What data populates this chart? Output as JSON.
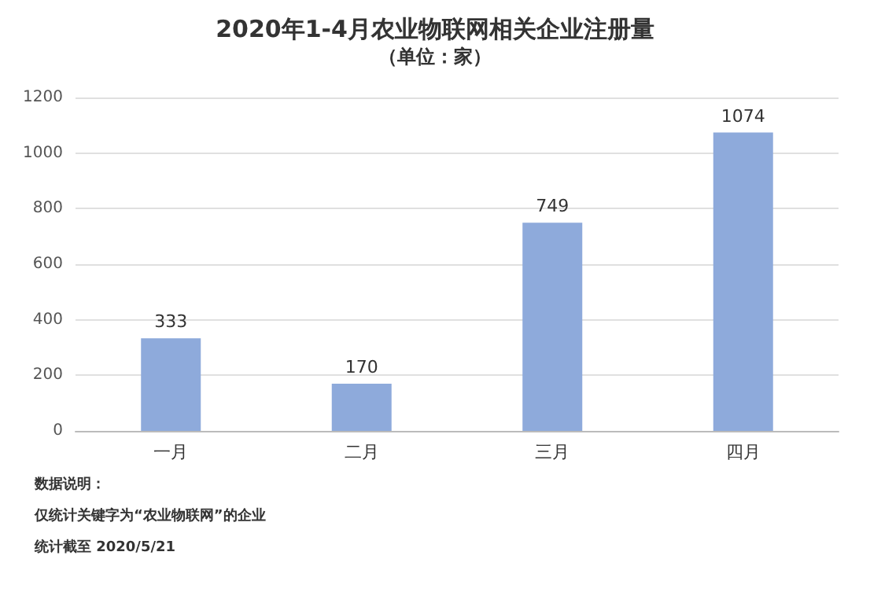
{
  "chart_data": {
    "type": "bar",
    "title": "2020年1-4月农业物联网相关企业注册量",
    "subtitle": "（单位：家）",
    "categories": [
      "一月",
      "二月",
      "三月",
      "四月"
    ],
    "values": [
      333,
      170,
      749,
      1074
    ],
    "color": "#8eaadb",
    "ylim": [
      0,
      1200
    ],
    "yticks": [
      0,
      200,
      400,
      600,
      800,
      1000,
      1200
    ],
    "grid": "y",
    "data_labels": true,
    "annotations": [
      "数据说明：",
      "仅统计关键字为“农业物联网”的企业",
      "统计截至 2020/5/21"
    ]
  }
}
